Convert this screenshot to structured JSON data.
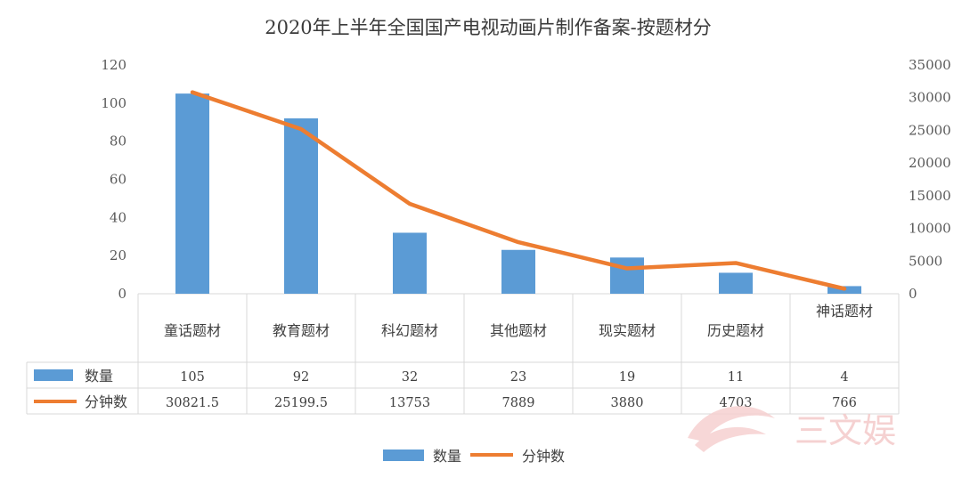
{
  "chart_data": {
    "type": "bar",
    "title": "2020年上半年全国国产电视动画片制作备案-按题材分",
    "categories": [
      "童话题材",
      "教育题材",
      "科幻题材",
      "其他题材",
      "现实题材",
      "历史题材",
      "神话题材"
    ],
    "series": [
      {
        "name": "数量",
        "type": "bar",
        "axis": "left",
        "color": "#5b9bd5",
        "values": [
          105,
          92,
          32,
          23,
          19,
          11,
          4
        ],
        "labels": [
          "105",
          "92",
          "32",
          "23",
          "19",
          "11",
          "4"
        ]
      },
      {
        "name": "分钟数",
        "type": "line",
        "axis": "right",
        "color": "#ed7d31",
        "values": [
          30821.5,
          25199.5,
          13753,
          7889,
          3880,
          4703,
          766
        ],
        "labels": [
          "30821.5",
          "25199.5",
          "13753",
          "7889",
          "3880",
          "4703",
          "766"
        ]
      }
    ],
    "y_left": {
      "range": [
        0,
        120
      ],
      "ticks": [
        "0",
        "20",
        "40",
        "60",
        "80",
        "100",
        "120"
      ]
    },
    "y_right": {
      "range": [
        0,
        35000
      ],
      "ticks": [
        "0",
        "5000",
        "10000",
        "15000",
        "20000",
        "25000",
        "30000",
        "35000"
      ]
    },
    "grid": false,
    "legend_position": "bottom",
    "data_table": true
  },
  "watermark": {
    "text": "三文娱"
  }
}
